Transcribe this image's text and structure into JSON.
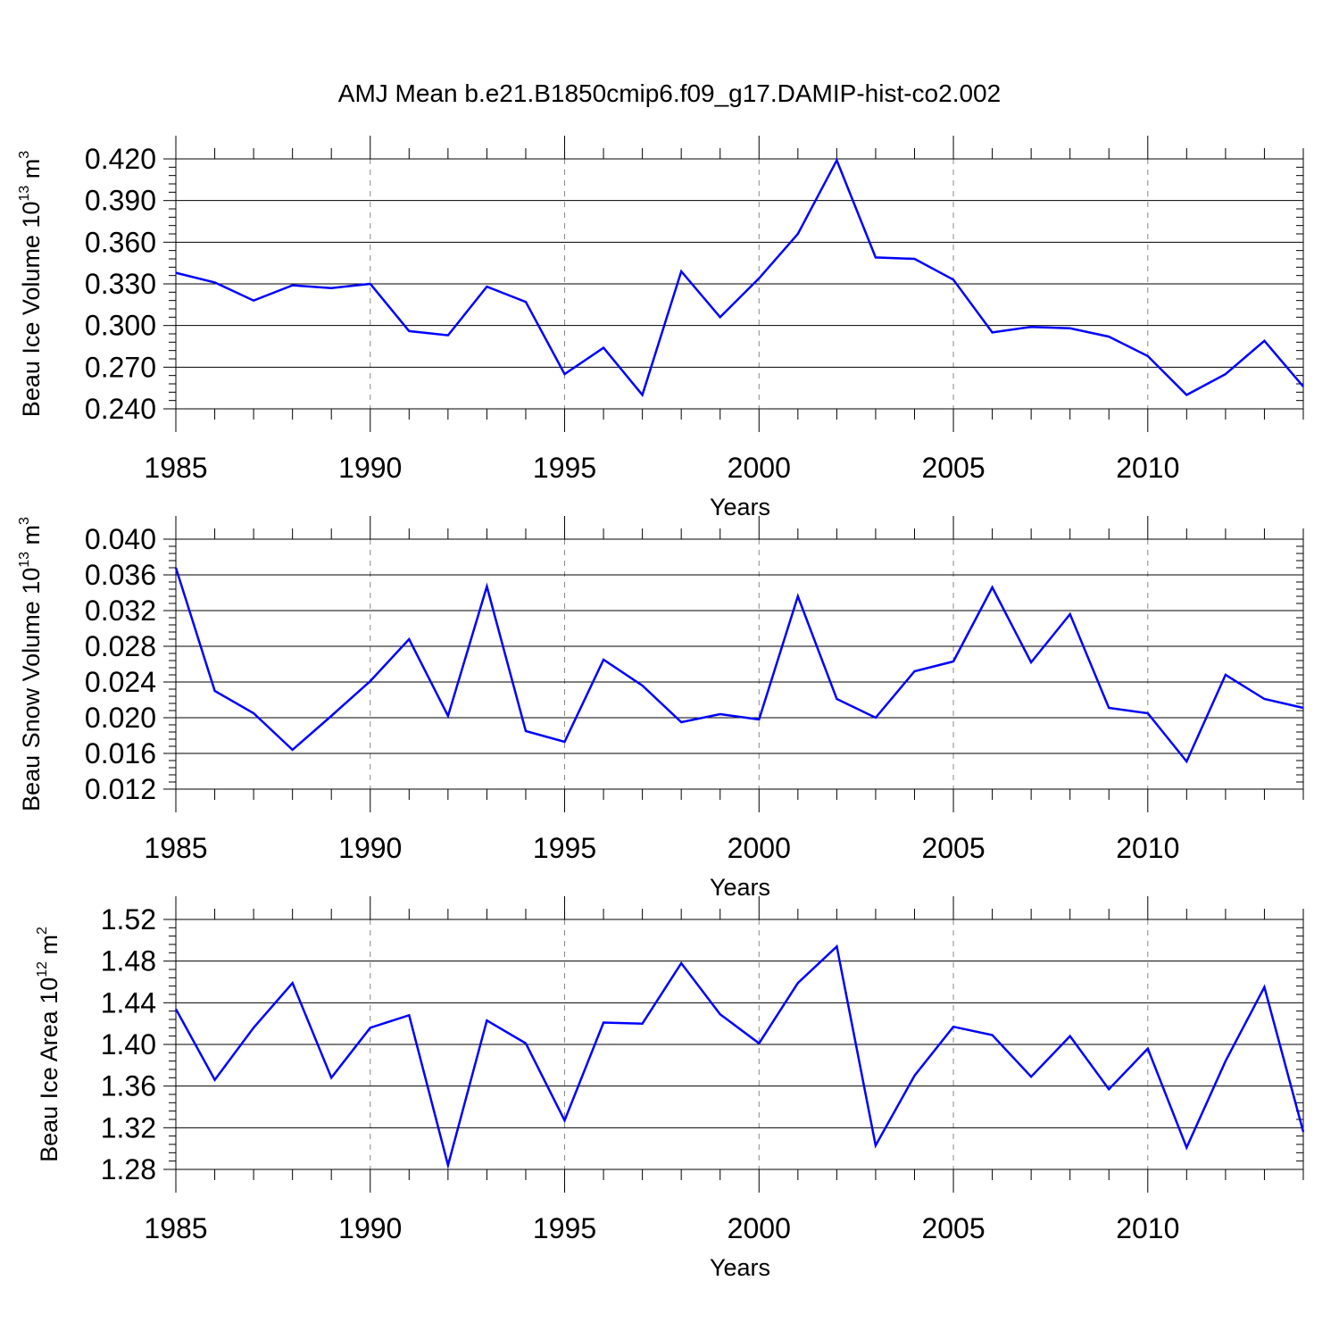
{
  "title": "AMJ Mean b.e21.B1850cmip6.f09_g17.DAMIP-hist-co2.002",
  "colors": {
    "line": "#0000ff",
    "axis": "#000000",
    "grid": "#888888"
  },
  "chart_data": [
    {
      "type": "line",
      "ylabel": {
        "main": "Beau Ice Volume 10",
        "exp": "13",
        "unit": " m",
        "unit_exp": "3"
      },
      "xlabel": "Years",
      "xlim": [
        1985,
        2014
      ],
      "ylim": [
        0.24,
        0.42
      ],
      "x_ticks": [
        "1985",
        "1990",
        "1995",
        "2000",
        "2005",
        "2010"
      ],
      "y_ticks": [
        "0.240",
        "0.270",
        "0.300",
        "0.330",
        "0.360",
        "0.390",
        "0.420"
      ],
      "x": [
        1985,
        1986,
        1987,
        1988,
        1989,
        1990,
        1991,
        1992,
        1993,
        1994,
        1995,
        1996,
        1997,
        1998,
        1999,
        2000,
        2001,
        2002,
        2003,
        2004,
        2005,
        2006,
        2007,
        2008,
        2009,
        2010,
        2011,
        2012,
        2013,
        2014
      ],
      "values": [
        0.338,
        0.331,
        0.318,
        0.329,
        0.327,
        0.33,
        0.296,
        0.293,
        0.328,
        0.317,
        0.265,
        0.284,
        0.25,
        0.339,
        0.306,
        0.334,
        0.366,
        0.419,
        0.349,
        0.348,
        0.333,
        0.295,
        0.299,
        0.298,
        0.292,
        0.278,
        0.25,
        0.265,
        0.289,
        0.256
      ]
    },
    {
      "type": "line",
      "ylabel": {
        "main": "Beau Snow Volume 10",
        "exp": "13",
        "unit": " m",
        "unit_exp": "3"
      },
      "xlabel": "Years",
      "xlim": [
        1985,
        2014
      ],
      "ylim": [
        0.012,
        0.04
      ],
      "x_ticks": [
        "1985",
        "1990",
        "1995",
        "2000",
        "2005",
        "2010"
      ],
      "y_ticks": [
        "0.012",
        "0.016",
        "0.020",
        "0.024",
        "0.028",
        "0.032",
        "0.036",
        "0.040"
      ],
      "x": [
        1985,
        1986,
        1987,
        1988,
        1989,
        1990,
        1991,
        1992,
        1993,
        1994,
        1995,
        1996,
        1997,
        1998,
        1999,
        2000,
        2001,
        2002,
        2003,
        2004,
        2005,
        2006,
        2007,
        2008,
        2009,
        2010,
        2011,
        2012,
        2013,
        2014
      ],
      "values": [
        0.0368,
        0.023,
        0.0205,
        0.0164,
        0.0202,
        0.0241,
        0.0288,
        0.0202,
        0.0347,
        0.0185,
        0.0173,
        0.0265,
        0.0236,
        0.0195,
        0.0204,
        0.0198,
        0.0336,
        0.0221,
        0.02,
        0.0252,
        0.0263,
        0.0346,
        0.0262,
        0.0316,
        0.0211,
        0.0205,
        0.0151,
        0.0248,
        0.0221,
        0.0211
      ]
    },
    {
      "type": "line",
      "ylabel": {
        "main": "Beau Ice Area 10",
        "exp": "12",
        "unit": " m",
        "unit_exp": "2"
      },
      "xlabel": "Years",
      "xlim": [
        1985,
        2014
      ],
      "ylim": [
        1.28,
        1.52
      ],
      "x_ticks": [
        "1985",
        "1990",
        "1995",
        "2000",
        "2005",
        "2010"
      ],
      "y_ticks": [
        "1.28",
        "1.32",
        "1.36",
        "1.40",
        "1.44",
        "1.48",
        "1.52"
      ],
      "x": [
        1985,
        1986,
        1987,
        1988,
        1989,
        1990,
        1991,
        1992,
        1993,
        1994,
        1995,
        1996,
        1997,
        1998,
        1999,
        2000,
        2001,
        2002,
        2003,
        2004,
        2005,
        2006,
        2007,
        2008,
        2009,
        2010,
        2011,
        2012,
        2013,
        2014
      ],
      "values": [
        1.434,
        1.366,
        1.416,
        1.459,
        1.368,
        1.416,
        1.428,
        1.284,
        1.423,
        1.401,
        1.327,
        1.421,
        1.42,
        1.478,
        1.429,
        1.401,
        1.459,
        1.494,
        1.303,
        1.37,
        1.417,
        1.409,
        1.369,
        1.408,
        1.357,
        1.396,
        1.301,
        1.384,
        1.455,
        1.316
      ]
    }
  ]
}
